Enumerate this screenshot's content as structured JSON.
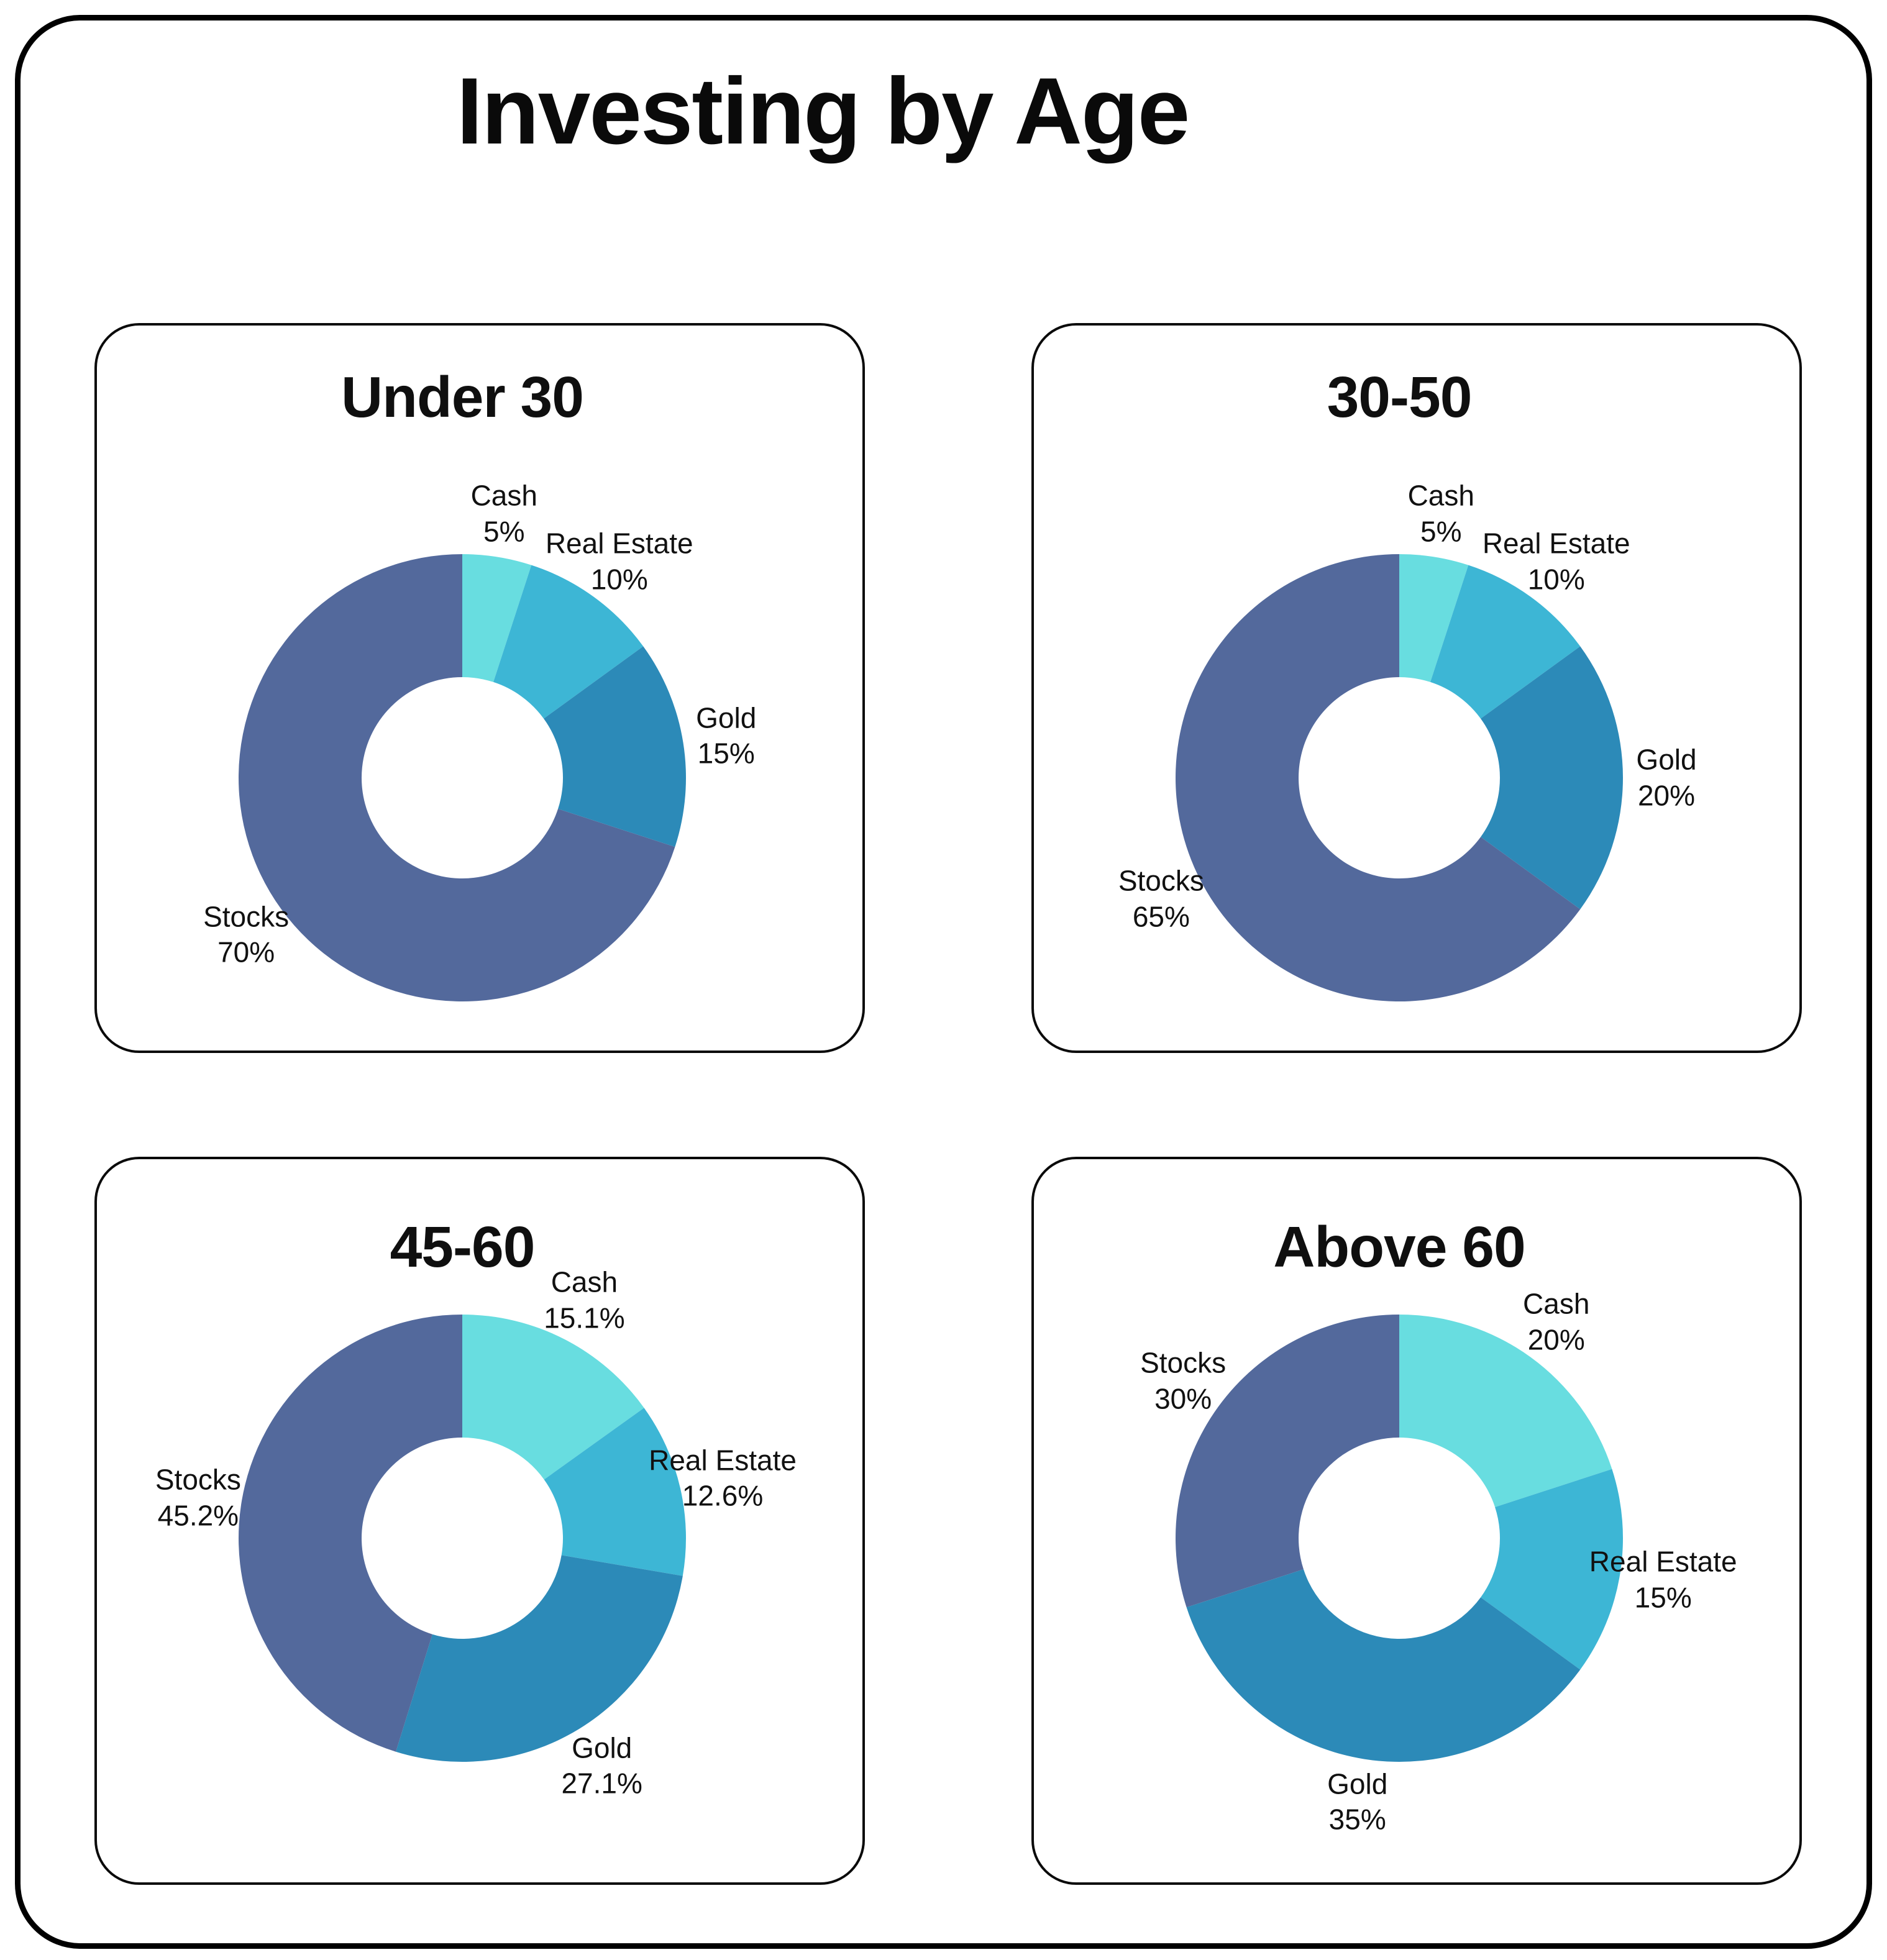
{
  "page": {
    "title": "Investing by Age"
  },
  "palette": {
    "cash": "#68dde0",
    "real_estate": "#3db6d5",
    "gold": "#2c8ab8",
    "stocks": "#53699c",
    "text": "#0f0f0f",
    "card_border": "#0a0a0a",
    "frame_border": "#000000",
    "background": "#ffffff"
  },
  "chart_data": [
    {
      "type": "pie",
      "title": "Under 30",
      "hole": 0.45,
      "start_angle_deg": 0,
      "direction": "clockwise",
      "legend": "off",
      "slices": [
        {
          "label": "Cash",
          "value": 5,
          "pct_label": "5%",
          "color_key": "cash"
        },
        {
          "label": "Real Estate",
          "value": 10,
          "pct_label": "10%",
          "color_key": "real_estate"
        },
        {
          "label": "Gold",
          "value": 15,
          "pct_label": "15%",
          "color_key": "gold"
        },
        {
          "label": "Stocks",
          "value": 70,
          "pct_label": "70%",
          "color_key": "stocks"
        }
      ]
    },
    {
      "type": "pie",
      "title": "30-50",
      "hole": 0.45,
      "start_angle_deg": 0,
      "direction": "clockwise",
      "legend": "off",
      "slices": [
        {
          "label": "Cash",
          "value": 5,
          "pct_label": "5%",
          "color_key": "cash"
        },
        {
          "label": "Real Estate",
          "value": 10,
          "pct_label": "10%",
          "color_key": "real_estate"
        },
        {
          "label": "Gold",
          "value": 20,
          "pct_label": "20%",
          "color_key": "gold"
        },
        {
          "label": "Stocks",
          "value": 65,
          "pct_label": "65%",
          "color_key": "stocks"
        }
      ]
    },
    {
      "type": "pie",
      "title": "45-60",
      "hole": 0.45,
      "start_angle_deg": 0,
      "direction": "clockwise",
      "legend": "off",
      "slices": [
        {
          "label": "Cash",
          "value": 15.1,
          "pct_label": "15.1%",
          "color_key": "cash"
        },
        {
          "label": "Real Estate",
          "value": 12.6,
          "pct_label": "12.6%",
          "color_key": "real_estate"
        },
        {
          "label": "Gold",
          "value": 27.1,
          "pct_label": "27.1%",
          "color_key": "gold"
        },
        {
          "label": "Stocks",
          "value": 45.2,
          "pct_label": "45.2%",
          "color_key": "stocks"
        }
      ]
    },
    {
      "type": "pie",
      "title": "Above 60",
      "hole": 0.45,
      "start_angle_deg": 0,
      "direction": "clockwise",
      "legend": "off",
      "slices": [
        {
          "label": "Cash",
          "value": 20,
          "pct_label": "20%",
          "color_key": "cash"
        },
        {
          "label": "Real Estate",
          "value": 15,
          "pct_label": "15%",
          "color_key": "real_estate"
        },
        {
          "label": "Gold",
          "value": 35,
          "pct_label": "35%",
          "color_key": "gold"
        },
        {
          "label": "Stocks",
          "value": 30,
          "pct_label": "30%",
          "color_key": "stocks"
        }
      ]
    }
  ]
}
